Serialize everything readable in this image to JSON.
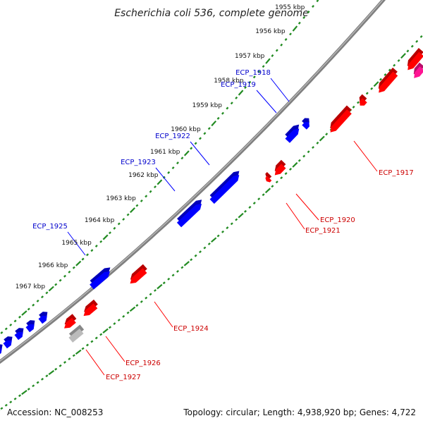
{
  "title": "Escherichia coli 536, complete genome",
  "accession_text": "Accession: NC_008253",
  "summary_text": "Topology: circular; Length: 4,938,920 bp; Genes: 4,722",
  "colors": {
    "backbone": "#808080",
    "tick": "#228b22",
    "forward_gene": "#0000ff",
    "reverse_gene": "#ff0000",
    "rna_gene": "#ff1493",
    "other_gene": "#bbbbbb",
    "forward_label": "#0000cc",
    "reverse_label": "#cc0000"
  },
  "tick_labels": [
    "1955 kbp",
    "1956 kbp",
    "1957 kbp",
    "1958 kbp",
    "1959 kbp",
    "1960 kbp",
    "1961 kbp",
    "1962 kbp",
    "1963 kbp",
    "1964 kbp",
    "1965 kbp",
    "1966 kbp",
    "1967 kbp"
  ],
  "forward_gene_labels": [
    "ECP_1918",
    "ECP_1919",
    "ECP_1922",
    "ECP_1923",
    "ECP_1925"
  ],
  "reverse_gene_labels": [
    "ECP_1917",
    "ECP_1920",
    "ECP_1921",
    "ECP_1924",
    "ECP_1926",
    "ECP_1927"
  ]
}
